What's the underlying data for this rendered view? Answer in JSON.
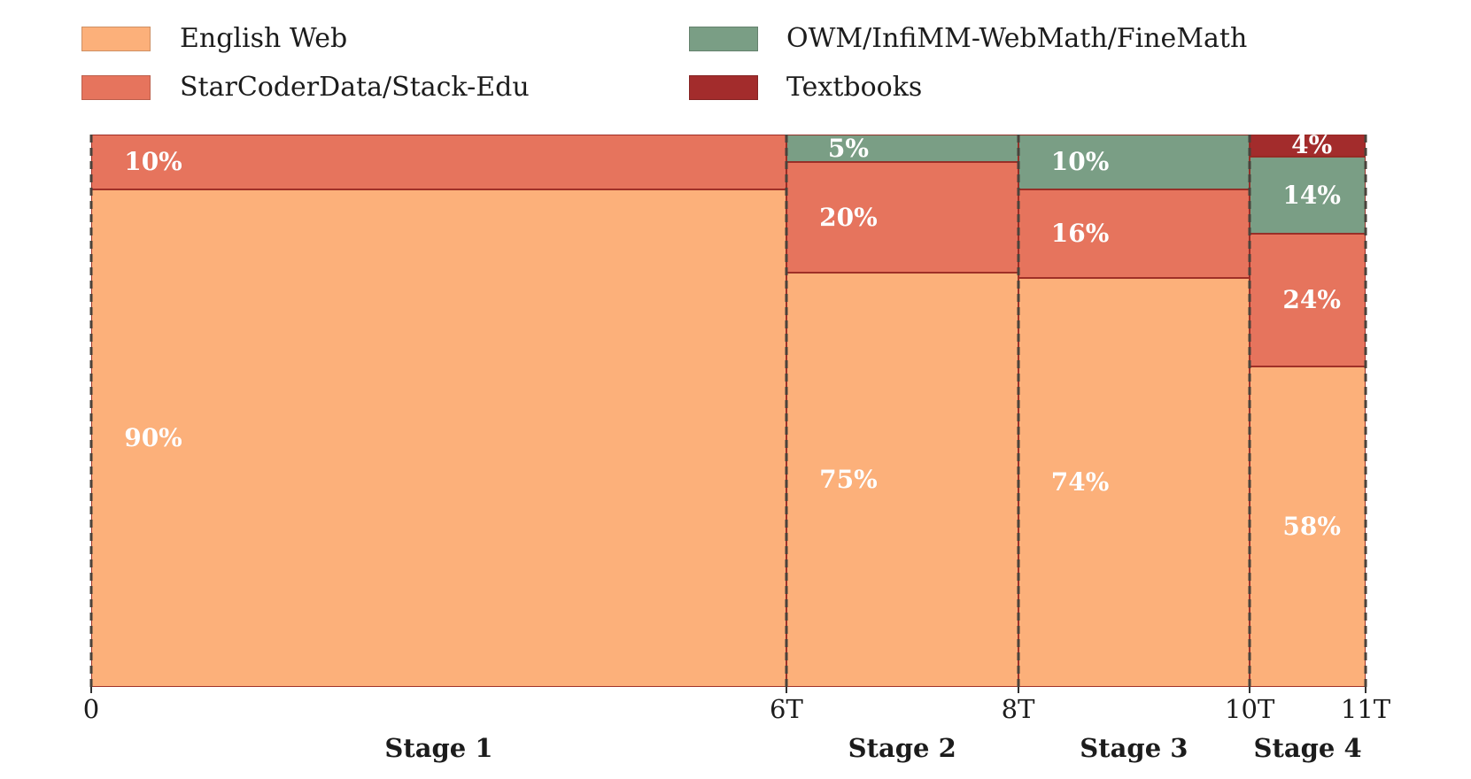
{
  "style": {
    "background": "#ffffff",
    "bar_edge_color": "rgba(150,38,32,0.9)",
    "dashed_line_color": "#4a423b",
    "text_color": "#1c1c1c",
    "segment_label_color": "#ffffff"
  },
  "legend": {
    "position": "top",
    "columns": 2,
    "items": [
      {
        "label": "English Web",
        "color": "#FCB07A"
      },
      {
        "label": "StarCoderData/Stack-Edu",
        "color": "#E6745D"
      },
      {
        "label": "OWM/InfiMM-WebMath/FineMath",
        "color": "#7A9E85"
      },
      {
        "label": "Textbooks",
        "color": "#A32C2C"
      }
    ]
  },
  "chart_data": {
    "type": "bar",
    "subtype": "mosaic-stacked-bar-horizontal-axis",
    "title": "",
    "xlabel": "",
    "ylabel": "",
    "x_unit": "trillion tokens",
    "x_range": [
      0,
      11
    ],
    "grid": "dashed vertical lines at stage boundaries",
    "legend_position": "top",
    "x_axis_ticks": [
      {
        "label": "0",
        "value": 0
      },
      {
        "label": "6T",
        "value": 6
      },
      {
        "label": "8T",
        "value": 8
      },
      {
        "label": "10T",
        "value": 10
      },
      {
        "label": "11T",
        "value": 11
      }
    ],
    "series": [
      {
        "name": "English Web",
        "color": "#FCB07A"
      },
      {
        "name": "StarCoderData/Stack-Edu",
        "color": "#E6745D"
      },
      {
        "name": "OWM/InfiMM-WebMath/FineMath",
        "color": "#7A9E85"
      },
      {
        "name": "Textbooks",
        "color": "#A32C2C"
      }
    ],
    "stages": [
      {
        "label": "Stage 1",
        "x_start": 0,
        "x_end": 6,
        "segments_top_to_bottom": [
          {
            "series": "StarCoderData/Stack-Edu",
            "pct": 10,
            "label": "10%"
          },
          {
            "series": "English Web",
            "pct": 90,
            "label": "90%"
          }
        ]
      },
      {
        "label": "Stage 2",
        "x_start": 6,
        "x_end": 8,
        "segments_top_to_bottom": [
          {
            "series": "OWM/InfiMM-WebMath/FineMath",
            "pct": 5,
            "label": "5%"
          },
          {
            "series": "StarCoderData/Stack-Edu",
            "pct": 20,
            "label": "20%"
          },
          {
            "series": "English Web",
            "pct": 75,
            "label": "75%"
          }
        ]
      },
      {
        "label": "Stage 3",
        "x_start": 8,
        "x_end": 10,
        "segments_top_to_bottom": [
          {
            "series": "OWM/InfiMM-WebMath/FineMath",
            "pct": 10,
            "label": "10%"
          },
          {
            "series": "StarCoderData/Stack-Edu",
            "pct": 16,
            "label": "16%"
          },
          {
            "series": "English Web",
            "pct": 74,
            "label": "74%"
          }
        ]
      },
      {
        "label": "Stage 4",
        "x_start": 10,
        "x_end": 11,
        "segments_top_to_bottom": [
          {
            "series": "Textbooks",
            "pct": 4,
            "label": "4%"
          },
          {
            "series": "OWM/InfiMM-WebMath/FineMath",
            "pct": 14,
            "label": "14%"
          },
          {
            "series": "StarCoderData/Stack-Edu",
            "pct": 24,
            "label": "24%"
          },
          {
            "series": "English Web",
            "pct": 58,
            "label": "58%"
          }
        ]
      }
    ]
  }
}
